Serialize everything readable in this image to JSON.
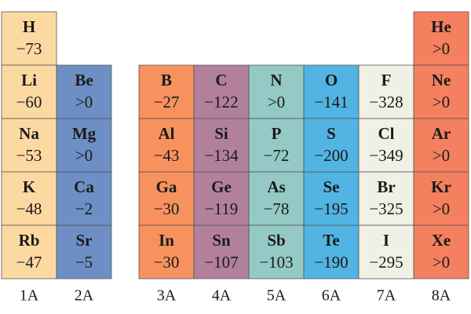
{
  "groups": [
    {
      "label": "1A",
      "elements": [
        {
          "symbol": "H",
          "value": "−73"
        },
        {
          "symbol": "Li",
          "value": "−60"
        },
        {
          "symbol": "Na",
          "value": "−53"
        },
        {
          "symbol": "K",
          "value": "−48"
        },
        {
          "symbol": "Rb",
          "value": "−47"
        }
      ]
    },
    {
      "label": "2A",
      "elements": [
        {
          "symbol": "Be",
          "value": ">0"
        },
        {
          "symbol": "Mg",
          "value": ">0"
        },
        {
          "symbol": "Ca",
          "value": "−2"
        },
        {
          "symbol": "Sr",
          "value": "−5"
        }
      ]
    },
    {
      "label": "3A",
      "elements": [
        {
          "symbol": "B",
          "value": "−27"
        },
        {
          "symbol": "Al",
          "value": "−43"
        },
        {
          "symbol": "Ga",
          "value": "−30"
        },
        {
          "symbol": "In",
          "value": "−30"
        }
      ]
    },
    {
      "label": "4A",
      "elements": [
        {
          "symbol": "C",
          "value": "−122"
        },
        {
          "symbol": "Si",
          "value": "−134"
        },
        {
          "symbol": "Ge",
          "value": "−119"
        },
        {
          "symbol": "Sn",
          "value": "−107"
        }
      ]
    },
    {
      "label": "5A",
      "elements": [
        {
          "symbol": "N",
          "value": ">0"
        },
        {
          "symbol": "P",
          "value": "−72"
        },
        {
          "symbol": "As",
          "value": "−78"
        },
        {
          "symbol": "Sb",
          "value": "−103"
        }
      ]
    },
    {
      "label": "6A",
      "elements": [
        {
          "symbol": "O",
          "value": "−141"
        },
        {
          "symbol": "S",
          "value": "−200"
        },
        {
          "symbol": "Se",
          "value": "−195"
        },
        {
          "symbol": "Te",
          "value": "−190"
        }
      ]
    },
    {
      "label": "7A",
      "elements": [
        {
          "symbol": "F",
          "value": "−328"
        },
        {
          "symbol": "Cl",
          "value": "−349"
        },
        {
          "symbol": "Br",
          "value": "−325"
        },
        {
          "symbol": "I",
          "value": "−295"
        }
      ]
    },
    {
      "label": "8A",
      "elements": [
        {
          "symbol": "He",
          "value": ">0"
        },
        {
          "symbol": "Ne",
          "value": ">0"
        },
        {
          "symbol": "Ar",
          "value": ">0"
        },
        {
          "symbol": "Kr",
          "value": ">0"
        },
        {
          "symbol": "Xe",
          "value": ">0"
        }
      ]
    }
  ]
}
